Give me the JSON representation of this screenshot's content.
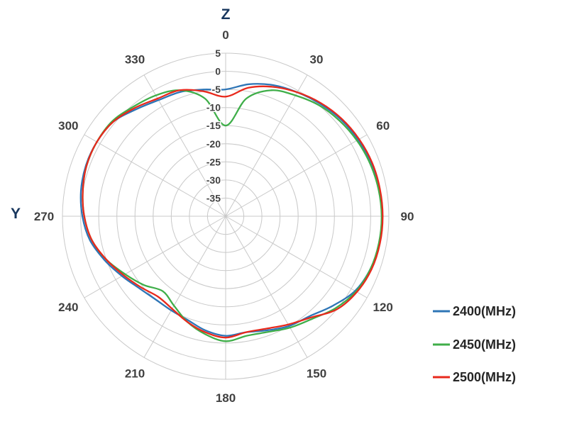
{
  "chart_data": {
    "type": "line",
    "subtype": "polar-radiation-pattern",
    "title": "",
    "angle_unit": "degrees",
    "angle_direction": "clockwise",
    "angle_zero_position": "top",
    "angle_ticks": [
      0,
      30,
      60,
      90,
      120,
      150,
      180,
      210,
      240,
      270,
      300,
      330
    ],
    "radial_ticks": [
      5,
      0,
      -5,
      -10,
      -15,
      -20,
      -25,
      -30,
      -35
    ],
    "rlim": [
      -40,
      5
    ],
    "grid": true,
    "legend_position": "right-bottom",
    "axis_title_color": "#17365D",
    "annotations": {
      "top": "Z",
      "left": "Y"
    },
    "angles_deg": [
      0,
      10,
      20,
      30,
      40,
      50,
      60,
      70,
      80,
      90,
      100,
      110,
      120,
      130,
      140,
      150,
      160,
      170,
      180,
      190,
      200,
      210,
      220,
      230,
      240,
      250,
      260,
      270,
      280,
      290,
      300,
      310,
      320,
      330,
      340,
      350
    ],
    "series": [
      {
        "name": "2400(MHz)",
        "color": "#2E75B6",
        "values": [
          -5,
          -3,
          -1.5,
          -0.5,
          0.5,
          1.5,
          2.2,
          2.8,
          3.1,
          3.2,
          3,
          2.5,
          1.2,
          -1.5,
          -4,
          -5,
          -6.5,
          -7.5,
          -7,
          -8,
          -9.5,
          -10,
          -10,
          -9,
          -7,
          -4.5,
          -2,
          -0.5,
          0.5,
          1,
          1,
          0.5,
          -1.5,
          -3,
          -3.5,
          -4.5
        ]
      },
      {
        "name": "2450(MHz)",
        "color": "#3FAE49",
        "values": [
          -15,
          -7,
          -3,
          -1.5,
          0,
          1,
          1.8,
          2.4,
          2.8,
          3,
          2.9,
          2.5,
          1.5,
          -0.5,
          -3,
          -4.5,
          -6,
          -6.5,
          -5.5,
          -7,
          -9,
          -11.5,
          -13,
          -10.5,
          -8,
          -5,
          -2.5,
          -1,
          0,
          0.8,
          1,
          0.8,
          -0.5,
          -1.5,
          -3,
          -7
        ]
      },
      {
        "name": "2500(MHz)",
        "color": "#E8291C",
        "values": [
          -7,
          -4,
          -2,
          -0.5,
          0.8,
          1.8,
          2.5,
          3,
          3.2,
          3.3,
          3.2,
          2.8,
          1.8,
          0,
          -3.5,
          -5.5,
          -7,
          -7.5,
          -6.5,
          -7.5,
          -9,
          -10.5,
          -11,
          -9.5,
          -7.5,
          -5,
          -2.5,
          -1,
          0,
          0.8,
          1,
          0.5,
          -1,
          -2.5,
          -3,
          -5
        ]
      }
    ]
  }
}
